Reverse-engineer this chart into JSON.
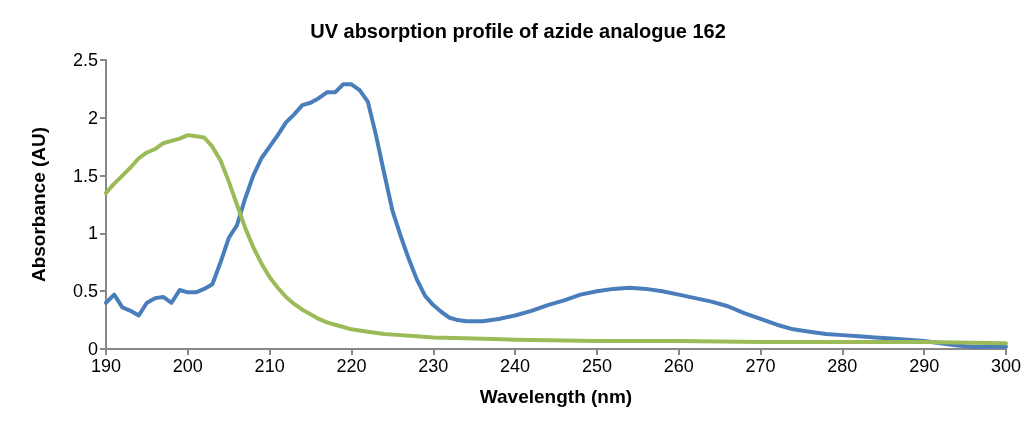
{
  "chart_data": {
    "type": "line",
    "title": "UV absorption profile of azide analogue 162",
    "xlabel": "Wavelength (nm)",
    "ylabel": "Absorbance (AU)",
    "xlim": [
      190,
      300
    ],
    "xticks": [
      190,
      200,
      210,
      220,
      230,
      240,
      250,
      260,
      270,
      280,
      290,
      300
    ],
    "ylim": [
      0,
      2.5
    ],
    "yticks": [
      0,
      0.5,
      1,
      1.5,
      2,
      2.5
    ],
    "grid": false,
    "marker": "none",
    "line_style": "solid",
    "series": [
      {
        "color": "#4a7ebb",
        "x": [
          190,
          191,
          192,
          193,
          194,
          195,
          196,
          197,
          198,
          199,
          200,
          201,
          202,
          203,
          204,
          205,
          206,
          207,
          208,
          209,
          210,
          211,
          212,
          213,
          214,
          215,
          216,
          217,
          218,
          219,
          220,
          221,
          222,
          223,
          224,
          225,
          226,
          227,
          228,
          229,
          230,
          231,
          232,
          233,
          234,
          236,
          238,
          240,
          242,
          244,
          246,
          248,
          250,
          252,
          254,
          256,
          258,
          260,
          262,
          264,
          266,
          268,
          270,
          272,
          274,
          276,
          278,
          280,
          282,
          284,
          286,
          288,
          290,
          292,
          294,
          296,
          298,
          300
        ],
        "values": [
          0.4,
          0.47,
          0.36,
          0.33,
          0.29,
          0.4,
          0.44,
          0.45,
          0.4,
          0.51,
          0.49,
          0.49,
          0.52,
          0.56,
          0.75,
          0.96,
          1.07,
          1.3,
          1.5,
          1.65,
          1.75,
          1.85,
          1.96,
          2.03,
          2.11,
          2.13,
          2.17,
          2.22,
          2.22,
          2.29,
          2.29,
          2.24,
          2.14,
          1.85,
          1.52,
          1.2,
          0.98,
          0.78,
          0.6,
          0.46,
          0.38,
          0.32,
          0.27,
          0.25,
          0.24,
          0.24,
          0.26,
          0.29,
          0.33,
          0.38,
          0.42,
          0.47,
          0.5,
          0.52,
          0.53,
          0.52,
          0.5,
          0.47,
          0.44,
          0.41,
          0.37,
          0.31,
          0.26,
          0.21,
          0.17,
          0.15,
          0.13,
          0.12,
          0.11,
          0.1,
          0.09,
          0.08,
          0.07,
          0.05,
          0.03,
          0.02,
          0.02,
          0.02
        ]
      },
      {
        "color": "#9bbb59",
        "x": [
          190,
          191,
          192,
          193,
          194,
          195,
          196,
          197,
          198,
          199,
          200,
          201,
          202,
          203,
          204,
          205,
          206,
          207,
          208,
          209,
          210,
          211,
          212,
          213,
          214,
          215,
          216,
          217,
          218,
          219,
          220,
          222,
          224,
          226,
          228,
          230,
          235,
          240,
          250,
          260,
          270,
          280,
          290,
          300
        ],
        "values": [
          1.35,
          1.43,
          1.5,
          1.57,
          1.65,
          1.7,
          1.73,
          1.78,
          1.8,
          1.82,
          1.85,
          1.84,
          1.83,
          1.75,
          1.63,
          1.45,
          1.25,
          1.05,
          0.88,
          0.74,
          0.62,
          0.53,
          0.45,
          0.39,
          0.34,
          0.3,
          0.26,
          0.23,
          0.21,
          0.19,
          0.17,
          0.15,
          0.13,
          0.12,
          0.11,
          0.1,
          0.09,
          0.08,
          0.07,
          0.07,
          0.06,
          0.06,
          0.06,
          0.05
        ]
      }
    ]
  }
}
